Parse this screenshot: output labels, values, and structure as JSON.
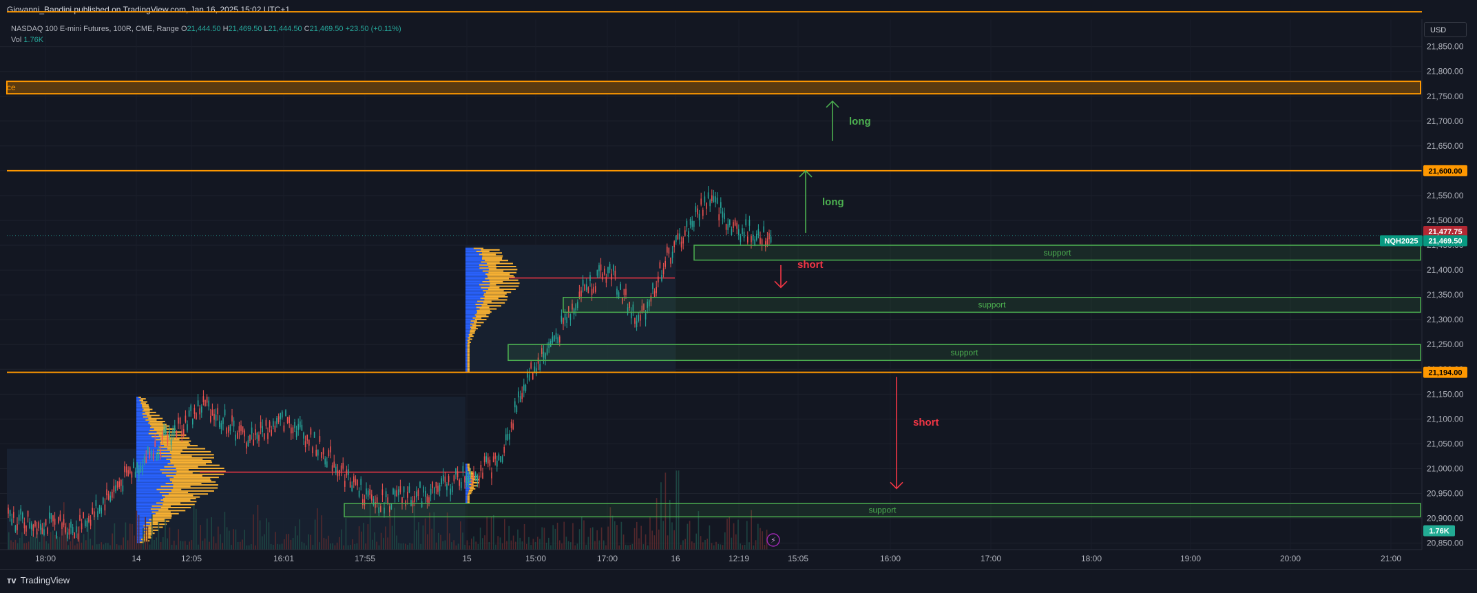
{
  "publisher": "Giovanni_Bandini published on TradingView.com, Jan 16, 2025 15:02 UTC+1",
  "brand": "TradingView",
  "currency": "USD",
  "legend": {
    "symbol": "NASDAQ 100 E-mini Futures, 100R, CME, Range",
    "o_label": "O",
    "o": "21,444.50",
    "h_label": "H",
    "h": "21,469.50",
    "l_label": "L",
    "l": "21,444.50",
    "c_label": "C",
    "c": "21,469.50",
    "change": "+23.50 (+0.11%)",
    "vol_label": "Vol",
    "vol": "1.76K"
  },
  "colors": {
    "background": "#131722",
    "orange_level": "#ff9800",
    "support_zone": "#4caf50",
    "up_candle": "#26a69a",
    "down_candle": "#ef5350",
    "long_arrow": "#4caf50",
    "short_arrow": "#f23645",
    "profile_blue": "#2962ff",
    "profile_orange": "#f9b233",
    "poc_line": "#f23645"
  },
  "chart_data": {
    "type": "candlestick",
    "symbol_tag": "NQH2025",
    "last_price": "21,469.50",
    "marker_price": "21,477.75",
    "volume_tag": "1.76K",
    "ylim": [
      20850,
      21925
    ],
    "y_ticks": [
      "21,850.00",
      "21,800.00",
      "21,750.00",
      "21,700.00",
      "21,650.00",
      "21,600.00",
      "21,550.00",
      "21,500.00",
      "21,450.00",
      "21,400.00",
      "21,350.00",
      "21,300.00",
      "21,250.00",
      "21,200.00",
      "21,150.00",
      "21,100.00",
      "21,050.00",
      "21,000.00",
      "20,950.00",
      "20,900.00",
      "20,850.00"
    ],
    "x_ticks": [
      "18:00",
      "14",
      "12:05",
      "16:01",
      "17:55",
      "15",
      "15:00",
      "17:00",
      "16",
      "12:19",
      "15:05",
      "16:00",
      "17:00",
      "18:00",
      "19:00",
      "20:00",
      "21:00"
    ],
    "levels": [
      {
        "price": 21920,
        "label": ""
      },
      {
        "price": 21600,
        "label": "21,600.00"
      },
      {
        "price": 21194,
        "label": "21,194.00"
      }
    ],
    "resistance_zone": {
      "top": 21780,
      "bottom": 21755,
      "label": "ce"
    },
    "support_zones": [
      {
        "top": 21450,
        "bottom": 21420,
        "label": "support"
      },
      {
        "top": 21345,
        "bottom": 21315,
        "label": "support"
      },
      {
        "top": 21250,
        "bottom": 21218,
        "label": "support"
      },
      {
        "top": 20930,
        "bottom": 20903,
        "label": "support"
      }
    ],
    "annotations": [
      {
        "text": "long",
        "direction": "up",
        "from": 21660,
        "to": 21740
      },
      {
        "text": "long",
        "direction": "up",
        "from": 21475,
        "to": 21600
      },
      {
        "text": "short",
        "direction": "down",
        "from": 21410,
        "to": 21365
      },
      {
        "text": "short",
        "direction": "down",
        "from": 21185,
        "to": 20960
      }
    ],
    "poc_levels": [
      21384,
      20993
    ],
    "price_path": [
      {
        "t": 0,
        "p": 20900
      },
      {
        "t": 0.05,
        "p": 20880
      },
      {
        "t": 0.09,
        "p": 21000
      },
      {
        "t": 0.14,
        "p": 21130
      },
      {
        "t": 0.17,
        "p": 21060
      },
      {
        "t": 0.2,
        "p": 21100
      },
      {
        "t": 0.23,
        "p": 21020
      },
      {
        "t": 0.26,
        "p": 20930
      },
      {
        "t": 0.3,
        "p": 20950
      },
      {
        "t": 0.33,
        "p": 20990
      },
      {
        "t": 0.35,
        "p": 21010
      },
      {
        "t": 0.37,
        "p": 21180
      },
      {
        "t": 0.39,
        "p": 21260
      },
      {
        "t": 0.41,
        "p": 21360
      },
      {
        "t": 0.43,
        "p": 21400
      },
      {
        "t": 0.45,
        "p": 21290
      },
      {
        "t": 0.47,
        "p": 21420
      },
      {
        "t": 0.48,
        "p": 21460
      },
      {
        "t": 0.5,
        "p": 21545
      },
      {
        "t": 0.52,
        "p": 21480
      },
      {
        "t": 0.545,
        "p": 21470
      }
    ]
  }
}
